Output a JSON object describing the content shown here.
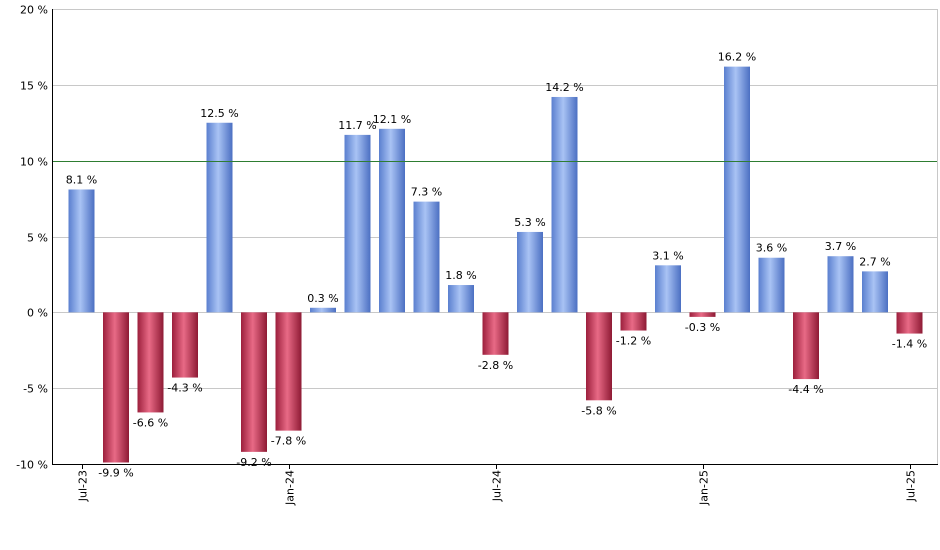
{
  "chart_data": {
    "type": "bar",
    "title": "",
    "xlabel": "",
    "ylabel": "",
    "ylim": [
      -10,
      20
    ],
    "y_ticks": [
      20,
      15,
      10,
      5,
      0,
      -5,
      -10
    ],
    "y_tick_labels": [
      "20 %",
      "15 %",
      "10 %",
      "5 %",
      "0 %",
      "-5 %",
      "-10 %"
    ],
    "grid": "horizontal",
    "reference_line": 10,
    "x_tick_labels": [
      {
        "index": 0,
        "label": "Jul-23"
      },
      {
        "index": 6,
        "label": "Jan-24"
      },
      {
        "index": 12,
        "label": "Jul-24"
      },
      {
        "index": 18,
        "label": "Jan-25"
      },
      {
        "index": 24,
        "label": "Jul-25"
      }
    ],
    "values": [
      8.1,
      -9.9,
      -6.6,
      -4.3,
      12.5,
      -9.2,
      -7.8,
      0.3,
      11.7,
      12.1,
      7.3,
      1.8,
      -2.8,
      5.3,
      14.2,
      -5.8,
      -1.2,
      3.1,
      -0.3,
      16.2,
      3.6,
      -4.4,
      3.7,
      2.7,
      -1.4
    ],
    "labels": [
      "8.1 %",
      "-9.9 %",
      "-6.6 %",
      "-4.3 %",
      "12.5 %",
      "-9.2 %",
      "-7.8 %",
      "0.3 %",
      "11.7 %",
      "12.1 %",
      "7.3 %",
      "1.8 %",
      "-2.8 %",
      "5.3 %",
      "14.2 %",
      "-5.8 %",
      "-1.2 %",
      "3.1 %",
      "-0.3 %",
      "16.2 %",
      "3.6 %",
      "-4.4 %",
      "3.7 %",
      "2.7 %",
      "-1.4 %"
    ],
    "colors": {
      "positive": "#7b9fe6",
      "negative": "#c8304f",
      "grid": "#c8c8c8",
      "reference_line": "#2e7d32",
      "axis": "#000000"
    }
  }
}
